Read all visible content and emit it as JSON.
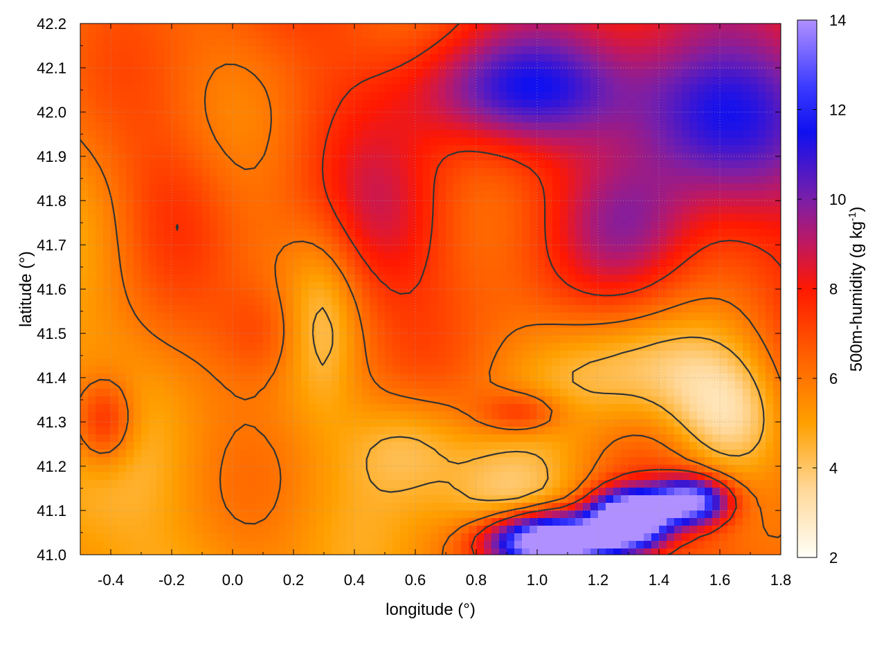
{
  "chart_data": {
    "type": "heatmap",
    "xlabel": "longitude (°)",
    "ylabel": "latitude (°)",
    "colorbar_label": "500m-humidity (g kg",
    "colorbar_label_sup": "-1",
    "colorbar_label_tail": ")",
    "xlim": [
      -0.5,
      1.8
    ],
    "ylim": [
      41.0,
      42.2
    ],
    "clim": [
      2,
      14
    ],
    "x_ticks": [
      {
        "value": -0.4,
        "label": "-0.4"
      },
      {
        "value": -0.2,
        "label": "-0.2"
      },
      {
        "value": 0.0,
        "label": "0.0"
      },
      {
        "value": 0.2,
        "label": "0.2"
      },
      {
        "value": 0.4,
        "label": "0.4"
      },
      {
        "value": 0.6,
        "label": "0.6"
      },
      {
        "value": 0.8,
        "label": "0.8"
      },
      {
        "value": 1.0,
        "label": "1.0"
      },
      {
        "value": 1.2,
        "label": "1.2"
      },
      {
        "value": 1.4,
        "label": "1.4"
      },
      {
        "value": 1.6,
        "label": "1.6"
      },
      {
        "value": 1.8,
        "label": "1.8"
      }
    ],
    "y_ticks": [
      {
        "value": 41.0,
        "label": "41.0"
      },
      {
        "value": 41.1,
        "label": "41.1"
      },
      {
        "value": 41.2,
        "label": "41.2"
      },
      {
        "value": 41.3,
        "label": "41.3"
      },
      {
        "value": 41.4,
        "label": "41.4"
      },
      {
        "value": 41.5,
        "label": "41.5"
      },
      {
        "value": 41.6,
        "label": "41.6"
      },
      {
        "value": 41.7,
        "label": "41.7"
      },
      {
        "value": 41.8,
        "label": "41.8"
      },
      {
        "value": 41.9,
        "label": "41.9"
      },
      {
        "value": 42.0,
        "label": "42.0"
      },
      {
        "value": 42.1,
        "label": "42.1"
      },
      {
        "value": 42.2,
        "label": "42.2"
      }
    ],
    "colorbar_ticks": [
      {
        "value": 2,
        "label": "2"
      },
      {
        "value": 4,
        "label": "4"
      },
      {
        "value": 6,
        "label": "6"
      },
      {
        "value": 8,
        "label": "8"
      },
      {
        "value": 10,
        "label": "10"
      },
      {
        "value": 12,
        "label": "12"
      },
      {
        "value": 14,
        "label": "14"
      }
    ],
    "colormap": [
      {
        "value": 2,
        "color": "#fffff8"
      },
      {
        "value": 3.5,
        "color": "#ffd89a"
      },
      {
        "value": 5,
        "color": "#ffa000"
      },
      {
        "value": 6.5,
        "color": "#ff6000"
      },
      {
        "value": 8,
        "color": "#ff1800"
      },
      {
        "value": 9,
        "color": "#c01860"
      },
      {
        "value": 10,
        "color": "#7a1fa8"
      },
      {
        "value": 11.5,
        "color": "#1010f0"
      },
      {
        "value": 12.5,
        "color": "#3a3aff"
      },
      {
        "value": 14,
        "color": "#b090ff"
      }
    ],
    "grid": true,
    "contour_color": "#333333",
    "humidity_features": [
      {
        "lon": 1.05,
        "lat": 41.03,
        "value": 11.8,
        "rlon": 0.2,
        "rlat": 0.06
      },
      {
        "lon": 1.3,
        "lat": 41.08,
        "value": 11.4,
        "rlon": 0.12,
        "rlat": 0.06
      },
      {
        "lon": 1.5,
        "lat": 41.12,
        "value": 8.0,
        "rlon": 0.12,
        "rlat": 0.05
      },
      {
        "lon": 1.35,
        "lat": 41.42,
        "value": -2.8,
        "rlon": 0.35,
        "rlat": 0.14
      },
      {
        "lon": 1.62,
        "lat": 41.3,
        "value": -3.0,
        "rlon": 0.2,
        "rlat": 0.14
      },
      {
        "lon": 0.9,
        "lat": 41.12,
        "value": -2.2,
        "rlon": 0.22,
        "rlat": 0.14
      },
      {
        "lon": 0.58,
        "lat": 41.25,
        "value": -1.8,
        "rlon": 0.2,
        "rlat": 0.12
      },
      {
        "lon": 0.3,
        "lat": 41.55,
        "value": -1.5,
        "rlon": 0.12,
        "rlat": 0.22
      },
      {
        "lon": 0.95,
        "lat": 41.32,
        "value": 2.2,
        "rlon": 0.14,
        "rlat": 0.05
      },
      {
        "lon": 0.95,
        "lat": 42.05,
        "value": 3.5,
        "rlon": 0.35,
        "rlat": 0.12
      },
      {
        "lon": 1.55,
        "lat": 42.0,
        "value": 3.5,
        "rlon": 0.3,
        "rlat": 0.18
      },
      {
        "lon": 1.3,
        "lat": 41.75,
        "value": 1.8,
        "rlon": 0.22,
        "rlat": 0.15
      },
      {
        "lon": -0.42,
        "lat": 41.3,
        "value": 2.8,
        "rlon": 0.1,
        "rlat": 0.1
      },
      {
        "lon": 0.1,
        "lat": 41.5,
        "value": 1.5,
        "rlon": 0.15,
        "rlat": 0.12
      },
      {
        "lon": 0.5,
        "lat": 41.75,
        "value": 1.8,
        "rlon": 0.25,
        "rlat": 0.2
      },
      {
        "lon": -0.2,
        "lat": 41.8,
        "value": 1.2,
        "rlon": 0.2,
        "rlat": 0.2
      }
    ]
  }
}
